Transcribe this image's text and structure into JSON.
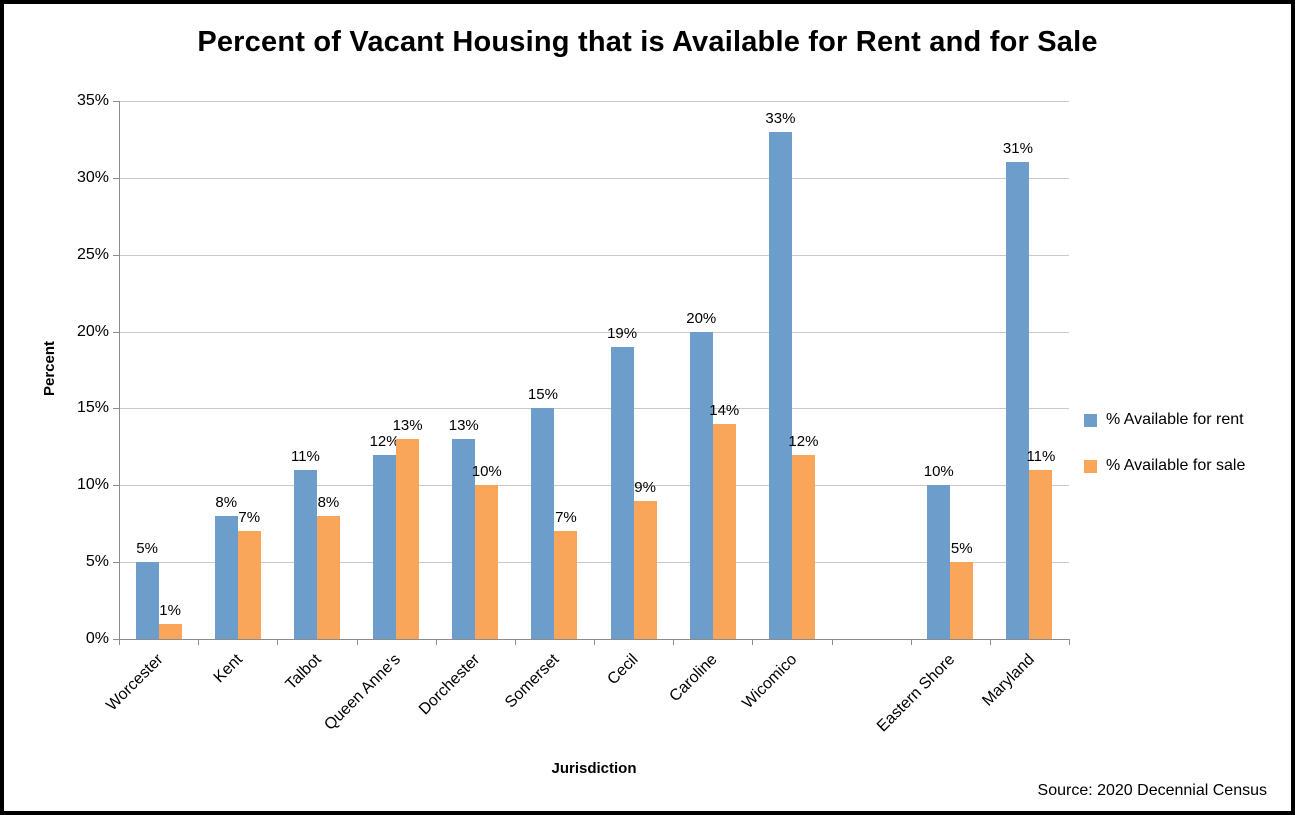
{
  "chart_data": {
    "type": "bar",
    "title": "Percent of Vacant Housing that is Available for Rent and for Sale",
    "xlabel": "Jurisdiction",
    "ylabel": "Percent",
    "source": "Source: 2020 Decennial Census",
    "ylim": [
      0,
      35
    ],
    "ytick_step": 5,
    "ytick_suffix": "%",
    "data_label_suffix": "%",
    "grid": true,
    "legend_position": "right",
    "categories": [
      "Worcester",
      "Kent",
      "Talbot",
      "Queen Anne's",
      "Dorchester",
      "Somerset",
      "Cecil",
      "Caroline",
      "Wicomico",
      "",
      "Eastern Shore",
      "Maryland"
    ],
    "series": [
      {
        "name": "% Available for rent",
        "color": "#6d9dcb",
        "values": [
          5,
          8,
          11,
          12,
          13,
          15,
          19,
          20,
          33,
          null,
          10,
          31
        ]
      },
      {
        "name": "% Available for sale",
        "color": "#f9a65a",
        "values": [
          1,
          7,
          8,
          13,
          10,
          7,
          9,
          14,
          12,
          null,
          5,
          11
        ]
      }
    ]
  }
}
